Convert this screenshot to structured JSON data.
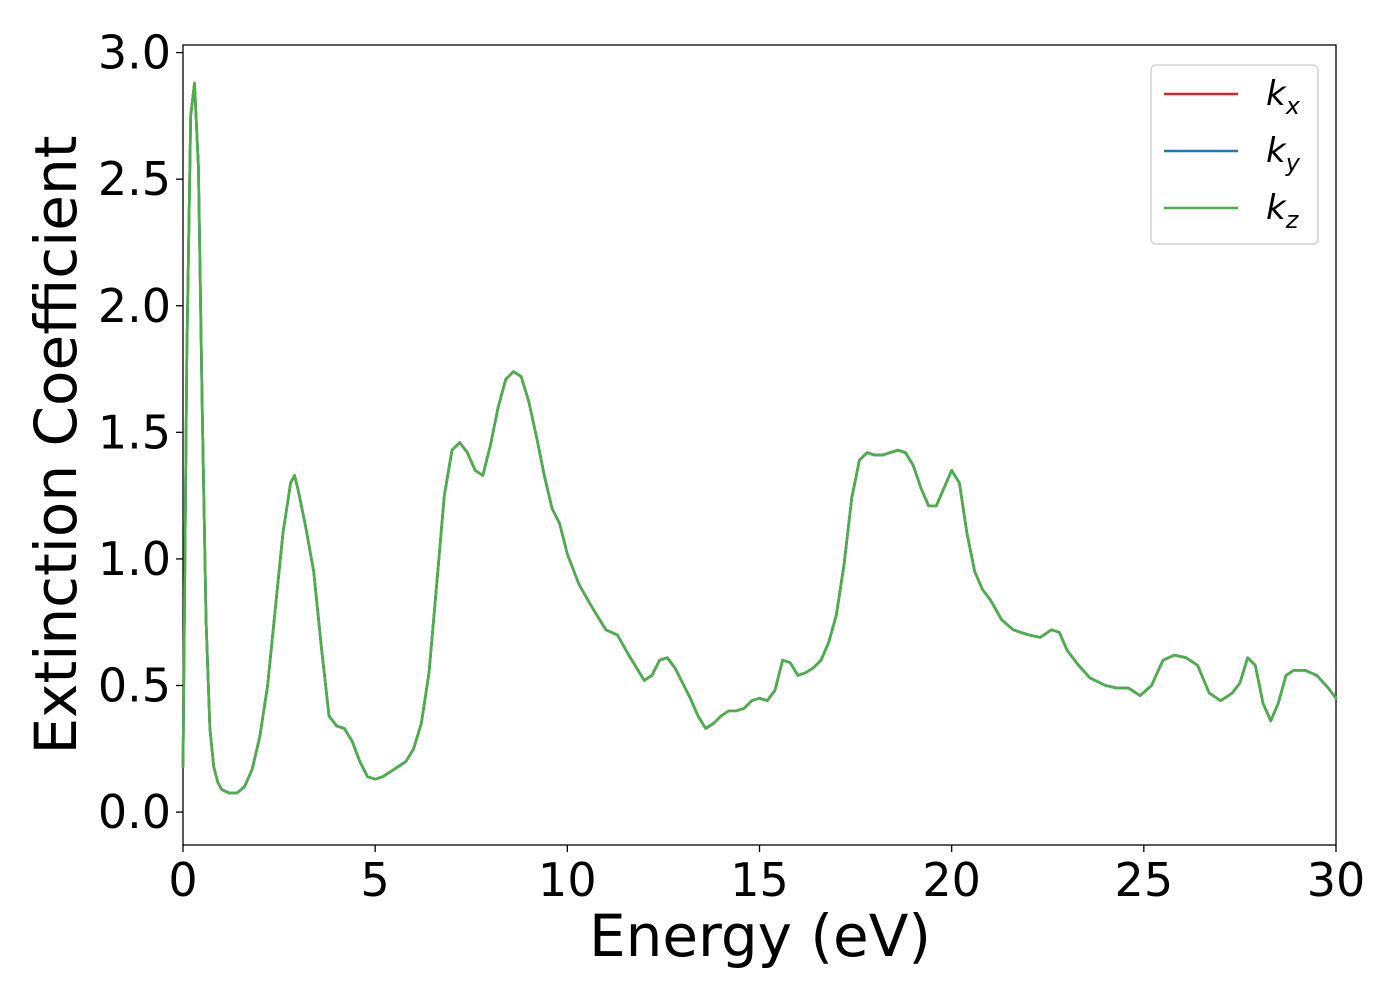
{
  "chart_data": {
    "type": "line",
    "title": "",
    "xlabel": "Energy (eV)",
    "ylabel": "Extinction Coefficient",
    "xlim": [
      0,
      30
    ],
    "ylim": [
      -0.13,
      3.03
    ],
    "xticks": [
      0,
      5,
      10,
      15,
      20,
      25,
      30
    ],
    "xtick_labels": [
      "0",
      "5",
      "10",
      "15",
      "20",
      "25",
      "30"
    ],
    "yticks": [
      0.0,
      0.5,
      1.0,
      1.5,
      2.0,
      2.5,
      3.0
    ],
    "ytick_labels": [
      "0.0",
      "0.5",
      "1.0",
      "1.5",
      "2.0",
      "2.5",
      "3.0"
    ],
    "grid": false,
    "legend_position": "top-right",
    "x": [
      0,
      0.1,
      0.2,
      0.3,
      0.4,
      0.5,
      0.6,
      0.7,
      0.8,
      0.9,
      1.0,
      1.2,
      1.4,
      1.6,
      1.8,
      2.0,
      2.2,
      2.4,
      2.6,
      2.8,
      2.9,
      3.0,
      3.2,
      3.4,
      3.6,
      3.8,
      4.0,
      4.2,
      4.4,
      4.6,
      4.8,
      5.0,
      5.2,
      5.5,
      5.8,
      6.0,
      6.2,
      6.4,
      6.6,
      6.8,
      7.0,
      7.2,
      7.4,
      7.6,
      7.8,
      8.0,
      8.2,
      8.4,
      8.6,
      8.8,
      9.0,
      9.2,
      9.4,
      9.6,
      9.8,
      10.0,
      10.3,
      10.6,
      11.0,
      11.3,
      11.6,
      12.0,
      12.2,
      12.4,
      12.6,
      12.8,
      13.0,
      13.2,
      13.4,
      13.6,
      13.8,
      14.0,
      14.2,
      14.4,
      14.6,
      14.8,
      15.0,
      15.2,
      15.4,
      15.6,
      15.8,
      16.0,
      16.2,
      16.4,
      16.6,
      16.8,
      17.0,
      17.2,
      17.4,
      17.6,
      17.8,
      18.0,
      18.2,
      18.4,
      18.6,
      18.8,
      19.0,
      19.2,
      19.4,
      19.6,
      19.8,
      20.0,
      20.2,
      20.4,
      20.6,
      20.8,
      21.0,
      21.3,
      21.6,
      22.0,
      22.3,
      22.6,
      22.8,
      23.0,
      23.3,
      23.6,
      24.0,
      24.3,
      24.6,
      24.9,
      25.2,
      25.5,
      25.8,
      26.1,
      26.4,
      26.7,
      27.0,
      27.3,
      27.5,
      27.7,
      27.9,
      28.1,
      28.3,
      28.5,
      28.7,
      28.9,
      29.2,
      29.5,
      29.8,
      30.0
    ],
    "series": [
      {
        "name": "k_x",
        "color": "#d62728",
        "values": [
          0.18,
          1.8,
          2.75,
          2.88,
          2.55,
          1.6,
          0.75,
          0.33,
          0.18,
          0.12,
          0.09,
          0.075,
          0.075,
          0.1,
          0.17,
          0.3,
          0.5,
          0.8,
          1.1,
          1.3,
          1.33,
          1.27,
          1.12,
          0.95,
          0.65,
          0.38,
          0.34,
          0.33,
          0.28,
          0.2,
          0.14,
          0.13,
          0.14,
          0.17,
          0.2,
          0.25,
          0.35,
          0.55,
          0.9,
          1.25,
          1.43,
          1.46,
          1.42,
          1.35,
          1.33,
          1.45,
          1.6,
          1.71,
          1.74,
          1.72,
          1.62,
          1.48,
          1.33,
          1.2,
          1.14,
          1.02,
          0.9,
          0.82,
          0.72,
          0.7,
          0.62,
          0.52,
          0.54,
          0.6,
          0.61,
          0.57,
          0.51,
          0.45,
          0.38,
          0.33,
          0.35,
          0.38,
          0.4,
          0.4,
          0.41,
          0.44,
          0.45,
          0.44,
          0.48,
          0.6,
          0.59,
          0.54,
          0.55,
          0.57,
          0.6,
          0.67,
          0.78,
          0.98,
          1.24,
          1.39,
          1.42,
          1.41,
          1.41,
          1.42,
          1.43,
          1.42,
          1.37,
          1.28,
          1.21,
          1.21,
          1.28,
          1.35,
          1.3,
          1.1,
          0.95,
          0.88,
          0.84,
          0.76,
          0.72,
          0.7,
          0.69,
          0.72,
          0.71,
          0.64,
          0.58,
          0.53,
          0.5,
          0.49,
          0.49,
          0.46,
          0.5,
          0.6,
          0.62,
          0.61,
          0.58,
          0.47,
          0.44,
          0.47,
          0.51,
          0.61,
          0.58,
          0.43,
          0.36,
          0.43,
          0.54,
          0.56,
          0.56,
          0.54,
          0.49,
          0.45
        ]
      },
      {
        "name": "k_y",
        "color": "#1f77b4",
        "values": [
          0.18,
          1.8,
          2.75,
          2.88,
          2.55,
          1.6,
          0.75,
          0.33,
          0.18,
          0.12,
          0.09,
          0.075,
          0.075,
          0.1,
          0.17,
          0.3,
          0.5,
          0.8,
          1.1,
          1.3,
          1.33,
          1.27,
          1.12,
          0.95,
          0.65,
          0.38,
          0.34,
          0.33,
          0.28,
          0.2,
          0.14,
          0.13,
          0.14,
          0.17,
          0.2,
          0.25,
          0.35,
          0.55,
          0.9,
          1.25,
          1.43,
          1.46,
          1.42,
          1.35,
          1.33,
          1.45,
          1.6,
          1.71,
          1.74,
          1.72,
          1.62,
          1.48,
          1.33,
          1.2,
          1.14,
          1.02,
          0.9,
          0.82,
          0.72,
          0.7,
          0.62,
          0.52,
          0.54,
          0.6,
          0.61,
          0.57,
          0.51,
          0.45,
          0.38,
          0.33,
          0.35,
          0.38,
          0.4,
          0.4,
          0.41,
          0.44,
          0.45,
          0.44,
          0.48,
          0.6,
          0.59,
          0.54,
          0.55,
          0.57,
          0.6,
          0.67,
          0.78,
          0.98,
          1.24,
          1.39,
          1.42,
          1.41,
          1.41,
          1.42,
          1.43,
          1.42,
          1.37,
          1.28,
          1.21,
          1.21,
          1.28,
          1.35,
          1.3,
          1.1,
          0.95,
          0.88,
          0.84,
          0.76,
          0.72,
          0.7,
          0.69,
          0.72,
          0.71,
          0.64,
          0.58,
          0.53,
          0.5,
          0.49,
          0.49,
          0.46,
          0.5,
          0.6,
          0.62,
          0.61,
          0.58,
          0.47,
          0.44,
          0.47,
          0.51,
          0.61,
          0.58,
          0.43,
          0.36,
          0.43,
          0.54,
          0.56,
          0.56,
          0.54,
          0.49,
          0.45
        ]
      },
      {
        "name": "k_z",
        "color": "#4daf4a",
        "values": [
          0.18,
          1.8,
          2.75,
          2.88,
          2.55,
          1.6,
          0.75,
          0.33,
          0.18,
          0.12,
          0.09,
          0.075,
          0.075,
          0.1,
          0.17,
          0.3,
          0.5,
          0.8,
          1.1,
          1.3,
          1.33,
          1.27,
          1.12,
          0.95,
          0.65,
          0.38,
          0.34,
          0.33,
          0.28,
          0.2,
          0.14,
          0.13,
          0.14,
          0.17,
          0.2,
          0.25,
          0.35,
          0.55,
          0.9,
          1.25,
          1.43,
          1.46,
          1.42,
          1.35,
          1.33,
          1.45,
          1.6,
          1.71,
          1.74,
          1.72,
          1.62,
          1.48,
          1.33,
          1.2,
          1.14,
          1.02,
          0.9,
          0.82,
          0.72,
          0.7,
          0.62,
          0.52,
          0.54,
          0.6,
          0.61,
          0.57,
          0.51,
          0.45,
          0.38,
          0.33,
          0.35,
          0.38,
          0.4,
          0.4,
          0.41,
          0.44,
          0.45,
          0.44,
          0.48,
          0.6,
          0.59,
          0.54,
          0.55,
          0.57,
          0.6,
          0.67,
          0.78,
          0.98,
          1.24,
          1.39,
          1.42,
          1.41,
          1.41,
          1.42,
          1.43,
          1.42,
          1.37,
          1.28,
          1.21,
          1.21,
          1.28,
          1.35,
          1.3,
          1.1,
          0.95,
          0.88,
          0.84,
          0.76,
          0.72,
          0.7,
          0.69,
          0.72,
          0.71,
          0.64,
          0.58,
          0.53,
          0.5,
          0.49,
          0.49,
          0.46,
          0.5,
          0.6,
          0.62,
          0.61,
          0.58,
          0.47,
          0.44,
          0.47,
          0.51,
          0.61,
          0.58,
          0.43,
          0.36,
          0.43,
          0.54,
          0.56,
          0.56,
          0.54,
          0.49,
          0.45
        ]
      }
    ],
    "legend": [
      {
        "symbol": "k",
        "subscript": "x",
        "color": "#d62728"
      },
      {
        "symbol": "k",
        "subscript": "y",
        "color": "#1f77b4"
      },
      {
        "symbol": "k",
        "subscript": "z",
        "color": "#4daf4a"
      }
    ]
  }
}
